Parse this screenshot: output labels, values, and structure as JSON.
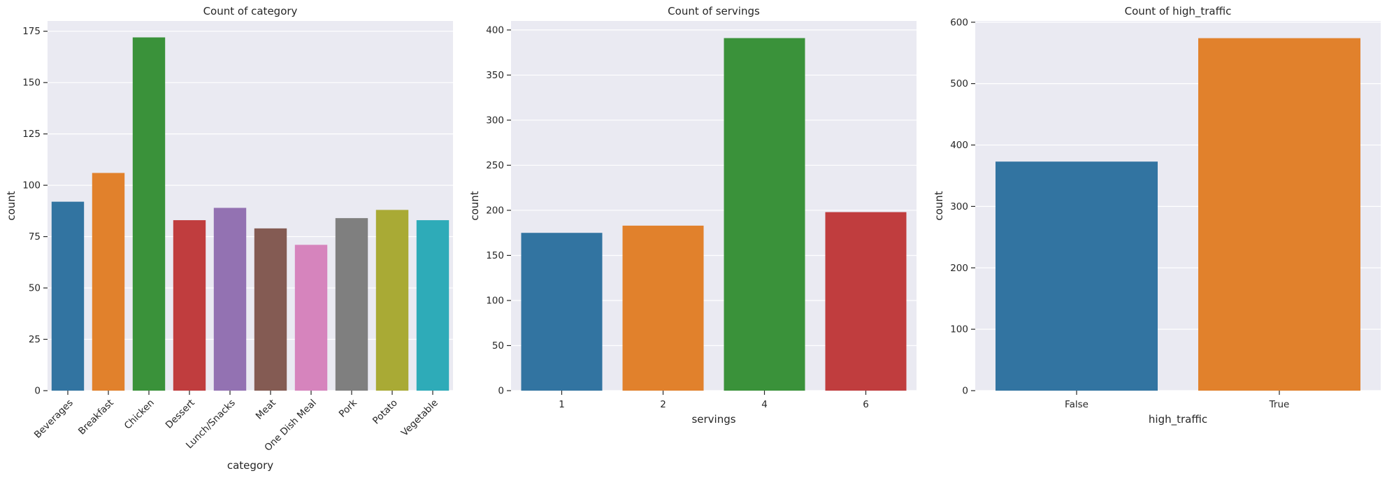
{
  "chart_data": [
    {
      "type": "bar",
      "title": "Count of category",
      "xlabel": "category",
      "ylabel": "count",
      "categories": [
        "Beverages",
        "Breakfast",
        "Chicken",
        "Dessert",
        "Lunch/Snacks",
        "Meat",
        "One Dish Meal",
        "Pork",
        "Potato",
        "Vegetable"
      ],
      "values": [
        92,
        106,
        172,
        83,
        89,
        79,
        71,
        84,
        88,
        83
      ],
      "colors": [
        "#3274a1",
        "#e1812c",
        "#3a923a",
        "#c03d3e",
        "#9372b2",
        "#845b53",
        "#d684bd",
        "#7f7f7f",
        "#a9aa35",
        "#2eabb8"
      ],
      "ylim": [
        0,
        180
      ],
      "yticks": [
        0,
        25,
        50,
        75,
        100,
        125,
        150,
        175
      ],
      "rotate_xticks": true
    },
    {
      "type": "bar",
      "title": "Count of servings",
      "xlabel": "servings",
      "ylabel": "count",
      "categories": [
        "1",
        "2",
        "4",
        "6"
      ],
      "values": [
        175,
        183,
        391,
        198
      ],
      "colors": [
        "#3274a1",
        "#e1812c",
        "#3a923a",
        "#c03d3e"
      ],
      "ylim": [
        0,
        410
      ],
      "yticks": [
        0,
        50,
        100,
        150,
        200,
        250,
        300,
        350,
        400
      ],
      "rotate_xticks": false
    },
    {
      "type": "bar",
      "title": "Count of high_traffic",
      "xlabel": "high_traffic",
      "ylabel": "count",
      "categories": [
        "False",
        "True"
      ],
      "values": [
        373,
        574
      ],
      "colors": [
        "#3274a1",
        "#e1812c"
      ],
      "ylim": [
        0,
        602
      ],
      "yticks": [
        0,
        100,
        200,
        300,
        400,
        500,
        600
      ],
      "rotate_xticks": false
    }
  ]
}
